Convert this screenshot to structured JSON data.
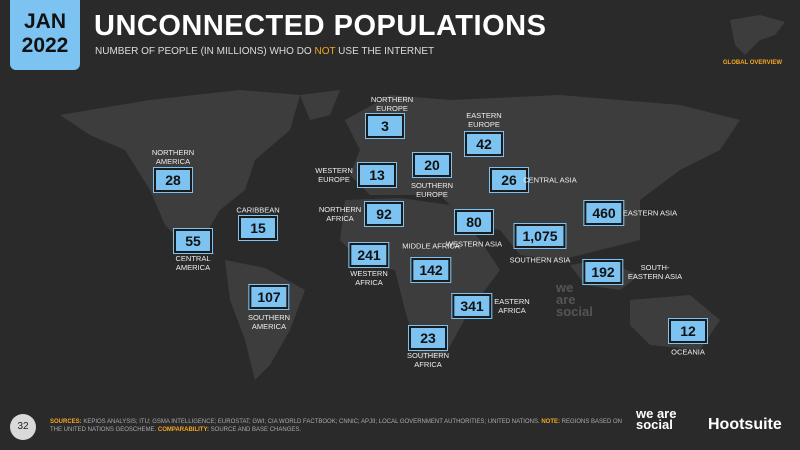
{
  "header": {
    "date_month": "JAN",
    "date_year": "2022",
    "title": "UNCONNECTED POPULATIONS",
    "subtitle_before": "NUMBER OF PEOPLE (IN MILLIONS) WHO DO ",
    "subtitle_highlight": "NOT",
    "subtitle_after": " USE THE INTERNET",
    "section": "GLOBAL OVERVIEW"
  },
  "regions": [
    {
      "name": "NORTHERN EUROPE",
      "value": "3"
    },
    {
      "name": "EASTERN EUROPE",
      "value": "42"
    },
    {
      "name": "NORTHERN AMERICA",
      "value": "28"
    },
    {
      "name": "WESTERN EUROPE",
      "value": "13"
    },
    {
      "name": "SOUTHERN EUROPE",
      "value": "20"
    },
    {
      "name": "CENTRAL ASIA",
      "value": "26"
    },
    {
      "name": "CARIBBEAN",
      "value": "15"
    },
    {
      "name": "NORTHERN AFRICA",
      "value": "92"
    },
    {
      "name": "WESTERN ASIA",
      "value": "80"
    },
    {
      "name": "SOUTHERN ASIA",
      "value": "1,075"
    },
    {
      "name": "EASTERN ASIA",
      "value": "460"
    },
    {
      "name": "CENTRAL AMERICA",
      "value": "55"
    },
    {
      "name": "WESTERN AFRICA",
      "value": "241"
    },
    {
      "name": "MIDDLE AFRICA",
      "value": "142"
    },
    {
      "name": "SOUTH-EASTERN ASIA",
      "value": "192"
    },
    {
      "name": "SOUTHERN AMERICA",
      "value": "107"
    },
    {
      "name": "EASTERN AFRICA",
      "value": "341"
    },
    {
      "name": "SOUTHERN AFRICA",
      "value": "23"
    },
    {
      "name": "OCEANIA",
      "value": "12"
    }
  ],
  "watermark": "we are social",
  "footer": {
    "page": "32",
    "sources_label": "SOURCES:",
    "sources_text": " KEPIOS ANALYSIS; ITU; GSMA INTELLIGENCE; EUROSTAT; GWI; CIA WORLD FACTBOOK; CNNIC; APJII; LOCAL GOVERNMENT AUTHORITIES; UNITED NATIONS. ",
    "note_label": "NOTE:",
    "note_text": " REGIONS BASED ON THE UNITED NATIONS GEOSCHEME. ",
    "comparability_label": "COMPARABILITY:",
    "comparability_text": " SOURCE AND BASE CHANGES.",
    "brand_1": "we are social",
    "brand_2": "Hootsuite"
  }
}
